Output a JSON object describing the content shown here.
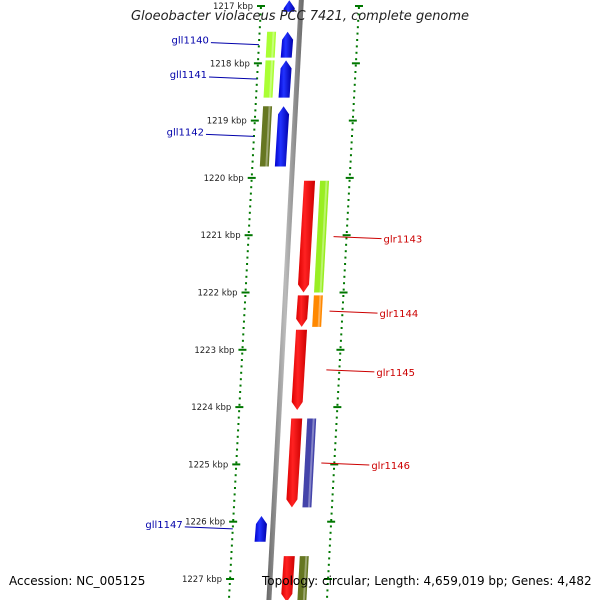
{
  "title": "Gloeobacter violaceus PCC 7421, complete genome",
  "footer": {
    "accession": "Accession: NC_005125",
    "summary": "Topology: circular; Length: 4,659,019 bp; Genes: 4,482"
  },
  "colors": {
    "reverse_label": "#0000aa",
    "forward_label": "#cc0000",
    "backbone": "#888888",
    "tick": "#007700"
  },
  "ticks": [
    {
      "kbp": 1217,
      "label": "1217 kbp"
    },
    {
      "kbp": 1218,
      "label": "1218 kbp"
    },
    {
      "kbp": 1219,
      "label": "1219 kbp"
    },
    {
      "kbp": 1220,
      "label": "1220 kbp"
    },
    {
      "kbp": 1221,
      "label": "1221 kbp"
    },
    {
      "kbp": 1222,
      "label": "1222 kbp"
    },
    {
      "kbp": 1223,
      "label": "1223 kbp"
    },
    {
      "kbp": 1224,
      "label": "1224 kbp"
    },
    {
      "kbp": 1225,
      "label": "1225 kbp"
    },
    {
      "kbp": 1226,
      "label": "1226 kbp"
    },
    {
      "kbp": 1227,
      "label": "1227 kbp"
    }
  ],
  "genes": [
    {
      "name": "gll1140",
      "strand": "reverse",
      "start_kbp": 1217.45,
      "end_kbp": 1217.9,
      "cog_color": "#aaff33"
    },
    {
      "name": "gll1141",
      "strand": "reverse",
      "start_kbp": 1217.95,
      "end_kbp": 1218.6,
      "cog_color": "#aaff33"
    },
    {
      "name": "gll1142",
      "strand": "reverse",
      "start_kbp": 1218.75,
      "end_kbp": 1219.8,
      "cog_color": "#667722"
    },
    {
      "name": "glr1143",
      "strand": "forward",
      "start_kbp": 1220.05,
      "end_kbp": 1222.0,
      "cog_color": "#99ee22"
    },
    {
      "name": "glr1144",
      "strand": "forward",
      "start_kbp": 1222.05,
      "end_kbp": 1222.6,
      "cog_color": "#ff8800"
    },
    {
      "name": "glr1145",
      "strand": "forward",
      "start_kbp": 1222.65,
      "end_kbp": 1224.05,
      "cog_color": ""
    },
    {
      "name": "glr1146",
      "strand": "forward",
      "start_kbp": 1224.2,
      "end_kbp": 1225.75,
      "cog_color": "#4444aa"
    },
    {
      "name": "gll1147",
      "strand": "reverse",
      "start_kbp": 1225.9,
      "end_kbp": 1226.35,
      "cog_color": ""
    },
    {
      "name": "",
      "strand": "reverse",
      "start_kbp": 1216.9,
      "end_kbp": 1217.1,
      "cog_color": ""
    },
    {
      "name": "",
      "strand": "forward",
      "start_kbp": 1226.6,
      "end_kbp": 1227.4,
      "cog_color": "#667722"
    }
  ]
}
